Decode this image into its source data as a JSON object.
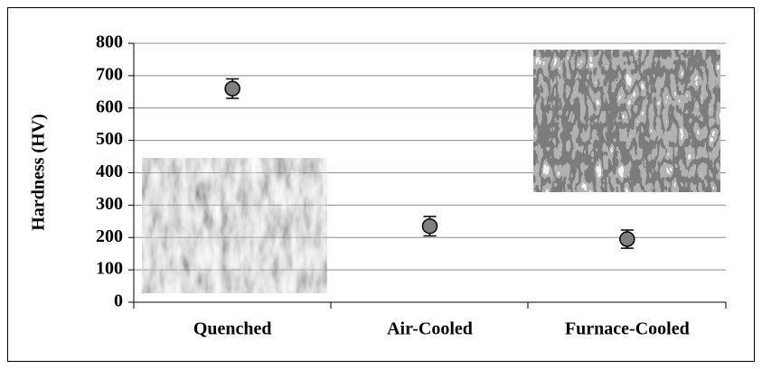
{
  "chart_data": {
    "type": "errorbar",
    "y_label": "Hardness (HV)",
    "categories": [
      "Quenched",
      "Air-Cooled",
      "Furnace-Cooled"
    ],
    "values": [
      660,
      235,
      195
    ],
    "errors": [
      30,
      30,
      28
    ],
    "color": "#808080",
    "ylim": [
      0,
      800
    ],
    "yticks": [
      0,
      100,
      200,
      300,
      400,
      500,
      600,
      700,
      800
    ],
    "grid": true
  }
}
